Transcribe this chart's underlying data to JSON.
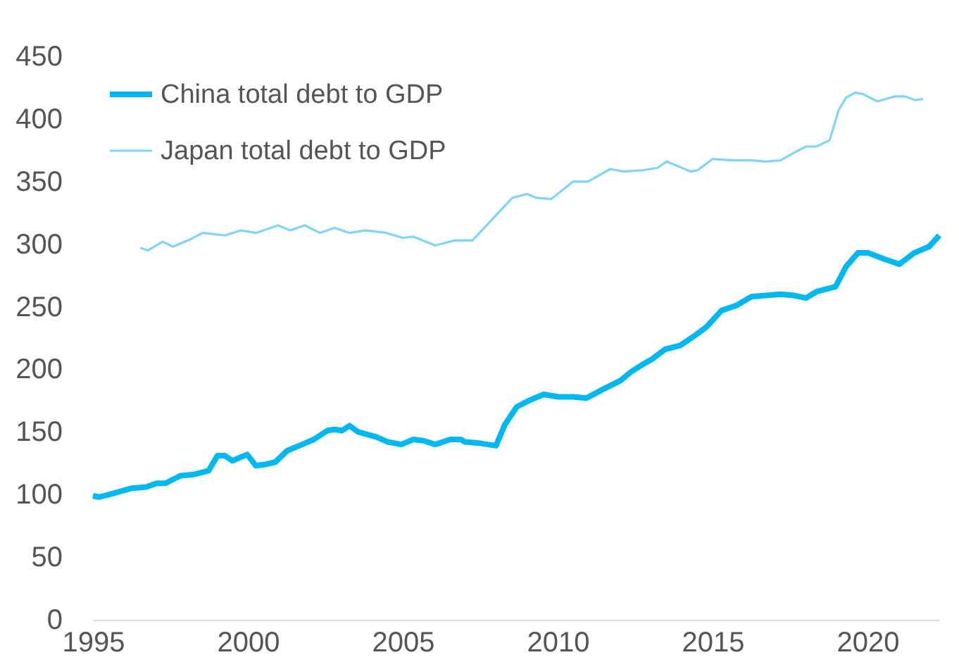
{
  "chart_data": {
    "type": "line",
    "xlim": [
      1995,
      2022.32
    ],
    "xticks": [
      1995,
      2000,
      2005,
      2010,
      2015,
      2020
    ],
    "ylim": [
      0,
      450
    ],
    "yticks": [
      0,
      50,
      100,
      150,
      200,
      250,
      300,
      350,
      400,
      450
    ],
    "grid": false,
    "legend": "top left",
    "line_style": "solid",
    "marker": "none",
    "series": [
      {
        "name": "China total debt to GDP",
        "color": "#00b8f0",
        "x": [
          1995.0,
          1995.19,
          1995.53,
          1996.24,
          1996.72,
          1997.06,
          1997.34,
          1997.82,
          1998.25,
          1998.73,
          1999.02,
          1999.26,
          1999.5,
          1999.98,
          2000.26,
          2000.55,
          2000.89,
          2001.27,
          2001.75,
          2002.13,
          2002.56,
          2002.8,
          2003.04,
          2003.28,
          2003.56,
          2004.14,
          2004.52,
          2004.95,
          2005.34,
          2005.67,
          2006.05,
          2006.53,
          2006.87,
          2007.01,
          2007.49,
          2008.01,
          2008.3,
          2008.68,
          2009.07,
          2009.55,
          2010.02,
          2010.5,
          2010.93,
          2011.46,
          2012.03,
          2012.37,
          2012.75,
          2013.04,
          2013.47,
          2013.95,
          2014.43,
          2014.81,
          2015.29,
          2015.77,
          2016.25,
          2016.72,
          2017.2,
          2017.63,
          2018.02,
          2018.35,
          2018.97,
          2019.31,
          2019.69,
          2020.02,
          2020.55,
          2021.03,
          2021.51,
          2021.99,
          2022.32
        ],
        "values": [
          99,
          98,
          100,
          105,
          106,
          109,
          109,
          115,
          116,
          119,
          131,
          131,
          127,
          132,
          123,
          124,
          126,
          135,
          140,
          144,
          151,
          152,
          151,
          155,
          150,
          146,
          142,
          140,
          144,
          143,
          140,
          144,
          144,
          142,
          141,
          139,
          156,
          170,
          175,
          180,
          178,
          178,
          177,
          184,
          191,
          198,
          204,
          208,
          216,
          219,
          227,
          234,
          247,
          251,
          258,
          259,
          260,
          259,
          257,
          262,
          266,
          282,
          293,
          293,
          288,
          284,
          293,
          298,
          307
        ]
      },
      {
        "name": "Japan  total debt to GDP",
        "color": "#7fd4f7",
        "x": [
          1996.53,
          1996.77,
          1997.25,
          1997.58,
          1998.16,
          1998.54,
          1999.26,
          1999.78,
          2000.26,
          2000.98,
          2001.36,
          2001.84,
          2002.32,
          2002.8,
          2003.28,
          2003.8,
          2004.47,
          2005.0,
          2005.34,
          2006.05,
          2006.68,
          2007.25,
          2007.82,
          2008.54,
          2009.02,
          2009.31,
          2009.79,
          2010.5,
          2010.98,
          2011.7,
          2012.13,
          2012.75,
          2013.23,
          2013.52,
          2014.29,
          2014.52,
          2015.0,
          2015.62,
          2016.25,
          2016.72,
          2017.2,
          2017.63,
          2018.02,
          2018.35,
          2018.78,
          2019.07,
          2019.31,
          2019.6,
          2019.84,
          2020.32,
          2020.89,
          2021.22,
          2021.55,
          2021.79
        ],
        "values": [
          297,
          295,
          302,
          298,
          304,
          309,
          307,
          311,
          309,
          315,
          311,
          315,
          309,
          313,
          309,
          311,
          309,
          305,
          306,
          299,
          303,
          303,
          318,
          337,
          340,
          337,
          336,
          350,
          350,
          360,
          358,
          359,
          361,
          366,
          358,
          359,
          368,
          367,
          367,
          366,
          367,
          373,
          378,
          378,
          383,
          407,
          417,
          421,
          420,
          414,
          418,
          418,
          415,
          416
        ]
      }
    ]
  }
}
